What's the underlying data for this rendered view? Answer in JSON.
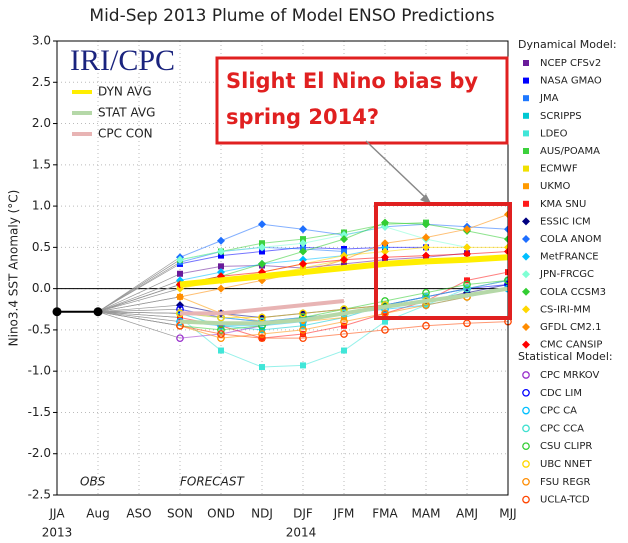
{
  "chart_data": {
    "type": "line",
    "title": "Mid-Sep 2013 Plume of Model ENSO Predictions",
    "y_label": "Nino3.4 SST Anomaly (°C)",
    "categories": [
      "JJA",
      "Aug",
      "ASO",
      "SON",
      "OND",
      "NDJ",
      "DJF",
      "JFM",
      "FMA",
      "MAM",
      "AMJ",
      "MJJ"
    ],
    "year_labels": [
      "2013",
      "2014"
    ],
    "ylim": [
      -2.5,
      3.0
    ],
    "yticks": [
      {
        "value": 3.0,
        "label": "3.0"
      },
      2.5,
      {
        "value": 2.0,
        "label": "2.0"
      },
      1.5,
      {
        "value": 1.0,
        "label": "1.0"
      },
      0.5,
      {
        "value": 0.0,
        "label": "0.0"
      },
      -0.5,
      {
        "value": -1.0,
        "label": "-1.0"
      },
      -1.5,
      {
        "value": -2.0,
        "label": "-2.0"
      },
      -2.5
    ],
    "grid": true,
    "annotations": {
      "logo": "IRI/CPC",
      "obs": "OBS",
      "forecast": "FORECAST",
      "callout": [
        "Slight El Nino bias by",
        "spring 2014?"
      ]
    },
    "observed": {
      "color": "#000000",
      "values": [
        -0.28,
        -0.28,
        null,
        null,
        null,
        null,
        null,
        null,
        null,
        null,
        null,
        null
      ]
    },
    "averages": [
      {
        "name": "DYN AVG",
        "color": "#ffee00",
        "values": [
          null,
          null,
          null,
          0.05,
          0.1,
          0.15,
          0.2,
          0.25,
          0.3,
          0.33,
          0.35,
          0.38
        ]
      },
      {
        "name": "STAT AVG",
        "color": "#b5d8a8",
        "values": [
          null,
          null,
          null,
          -0.4,
          -0.42,
          -0.42,
          -0.38,
          -0.3,
          -0.22,
          -0.15,
          -0.08,
          0.0
        ]
      },
      {
        "name": "CPC CON",
        "color": "#e8b4b4",
        "values": [
          null,
          null,
          null,
          -0.3,
          -0.3,
          -0.25,
          -0.2,
          -0.15,
          null,
          null,
          null,
          null
        ]
      }
    ],
    "dynamical_models": {
      "title": "Dynamical Model:",
      "marker": "filled",
      "series": [
        {
          "name": "NCEP CFSv2",
          "color": "#6a1b9a",
          "shape": "square",
          "values": [
            null,
            null,
            null,
            0.18,
            0.27,
            0.28,
            0.25,
            0.3,
            0.35,
            0.38,
            0.43,
            null
          ]
        },
        {
          "name": "NASA GMAO",
          "color": "#0000ff",
          "shape": "square",
          "values": [
            null,
            null,
            null,
            0.3,
            0.4,
            0.45,
            0.5,
            0.48,
            0.5,
            0.5,
            null,
            null
          ]
        },
        {
          "name": "JMA",
          "color": "#1e78ff",
          "shape": "square",
          "values": [
            null,
            null,
            null,
            0.32,
            0.45,
            0.5,
            0.48,
            0.45,
            null,
            null,
            null,
            null
          ]
        },
        {
          "name": "SCRIPPS",
          "color": "#00c8d2",
          "shape": "square",
          "values": [
            null,
            null,
            null,
            -0.3,
            -0.45,
            -0.5,
            -0.45,
            -0.35,
            -0.2,
            -0.1,
            null,
            null
          ]
        },
        {
          "name": "LDEO",
          "color": "#40e6d8",
          "shape": "square",
          "values": [
            null,
            null,
            null,
            -0.35,
            -0.75,
            -0.95,
            -0.93,
            -0.75,
            -0.4,
            -0.2,
            0.0,
            0.1
          ]
        },
        {
          "name": "AUS/POAMA",
          "color": "#3cd13c",
          "shape": "square",
          "values": [
            null,
            null,
            null,
            0.35,
            0.45,
            0.55,
            0.6,
            0.68,
            0.78,
            0.8,
            null,
            null
          ]
        },
        {
          "name": "ECMWF",
          "color": "#f0e000",
          "shape": "square",
          "values": [
            null,
            null,
            null,
            0.05,
            0.1,
            0.15,
            0.25,
            0.35,
            null,
            null,
            null,
            null
          ]
        },
        {
          "name": "UKMO",
          "color": "#ff9a00",
          "shape": "square",
          "values": [
            null,
            null,
            null,
            -0.1,
            -0.3,
            -0.4,
            -0.4,
            -0.35,
            null,
            null,
            null,
            null
          ]
        },
        {
          "name": "KMA SNU",
          "color": "#ff1a1a",
          "shape": "square",
          "values": [
            null,
            null,
            null,
            -0.35,
            -0.45,
            -0.6,
            -0.55,
            -0.45,
            -0.3,
            -0.15,
            0.1,
            0.2
          ]
        },
        {
          "name": "ESSIC ICM",
          "color": "#000080",
          "shape": "diamond",
          "values": [
            null,
            null,
            null,
            -0.2,
            -0.3,
            -0.35,
            -0.3,
            -0.25,
            -0.2,
            -0.15,
            -0.05,
            0.05
          ]
        },
        {
          "name": "COLA ANOM",
          "color": "#1e6fff",
          "shape": "diamond",
          "values": [
            null,
            null,
            null,
            0.38,
            0.58,
            0.78,
            0.72,
            0.65,
            0.75,
            0.78,
            0.75,
            0.72
          ]
        },
        {
          "name": "MetFRANCE",
          "color": "#00bfff",
          "shape": "diamond",
          "values": [
            null,
            null,
            null,
            0.1,
            0.2,
            0.3,
            0.35,
            0.4,
            0.5,
            null,
            null,
            null
          ]
        },
        {
          "name": "JPN-FRCGC",
          "color": "#7fffd4",
          "shape": "diamond",
          "values": [
            null,
            null,
            null,
            0.35,
            0.45,
            0.5,
            0.55,
            0.65,
            0.75,
            0.6,
            0.5,
            null
          ]
        },
        {
          "name": "COLA CCSM3",
          "color": "#32cd32",
          "shape": "diamond",
          "values": [
            null,
            null,
            null,
            0.05,
            0.15,
            0.3,
            0.45,
            0.6,
            0.8,
            0.78,
            0.7,
            0.6
          ]
        },
        {
          "name": "CS-IRI-MM",
          "color": "#ffd700",
          "shape": "diamond",
          "values": [
            null,
            null,
            null,
            0.0,
            0.1,
            0.2,
            0.3,
            0.4,
            0.45,
            0.5,
            0.5,
            0.5
          ]
        },
        {
          "name": "GFDL CM2.1",
          "color": "#ff8c00",
          "shape": "diamond",
          "values": [
            null,
            null,
            null,
            -0.1,
            0.0,
            0.1,
            0.2,
            0.35,
            0.55,
            0.62,
            0.72,
            0.9
          ]
        },
        {
          "name": "CMC CANSIP",
          "color": "#ff0000",
          "shape": "diamond",
          "values": [
            null,
            null,
            null,
            0.05,
            0.15,
            0.2,
            0.3,
            0.35,
            0.38,
            0.4,
            0.42,
            0.45
          ]
        }
      ]
    },
    "statistical_models": {
      "title": "Statistical Model:",
      "marker": "open",
      "series": [
        {
          "name": "CPC MRKOV",
          "color": "#9932cc",
          "shape": "circle",
          "values": [
            null,
            null,
            null,
            -0.6,
            -0.55,
            -0.45,
            -0.35,
            -0.3,
            -0.2,
            -0.1,
            0.0,
            0.1
          ]
        },
        {
          "name": "CDC LIM",
          "color": "#0000ff",
          "shape": "circle",
          "values": [
            null,
            null,
            null,
            -0.25,
            -0.35,
            -0.4,
            -0.35,
            -0.3,
            -0.2,
            -0.1,
            0.0,
            0.05
          ]
        },
        {
          "name": "CPC CA",
          "color": "#00bfff",
          "shape": "circle",
          "values": [
            null,
            null,
            null,
            -0.4,
            -0.45,
            -0.45,
            -0.4,
            -0.3,
            -0.25,
            -0.2,
            -0.1,
            0.0
          ]
        },
        {
          "name": "CPC CCA",
          "color": "#40e0d0",
          "shape": "circle",
          "values": [
            null,
            null,
            null,
            -0.3,
            -0.35,
            -0.4,
            -0.35,
            -0.3,
            -0.2,
            -0.1,
            0.0,
            0.1
          ]
        },
        {
          "name": "CSU CLIPR",
          "color": "#32cd32",
          "shape": "circle",
          "values": [
            null,
            null,
            null,
            -0.45,
            -0.5,
            -0.45,
            -0.35,
            -0.25,
            -0.15,
            -0.05,
            0.05,
            0.1
          ]
        },
        {
          "name": "UBC NNET",
          "color": "#ffd700",
          "shape": "circle",
          "values": [
            null,
            null,
            null,
            -0.3,
            -0.35,
            -0.35,
            -0.3,
            -0.25,
            -0.2,
            -0.15,
            -0.1,
            null
          ]
        },
        {
          "name": "FSU REGR",
          "color": "#ff8c00",
          "shape": "circle",
          "values": [
            null,
            null,
            null,
            -0.45,
            -0.6,
            -0.55,
            -0.5,
            -0.4,
            -0.3,
            -0.2,
            -0.1,
            null
          ]
        },
        {
          "name": "UCLA-TCD",
          "color": "#ff4500",
          "shape": "circle",
          "values": [
            null,
            null,
            null,
            -0.45,
            -0.55,
            -0.6,
            -0.6,
            -0.55,
            -0.5,
            -0.45,
            -0.42,
            -0.4
          ]
        }
      ]
    }
  }
}
